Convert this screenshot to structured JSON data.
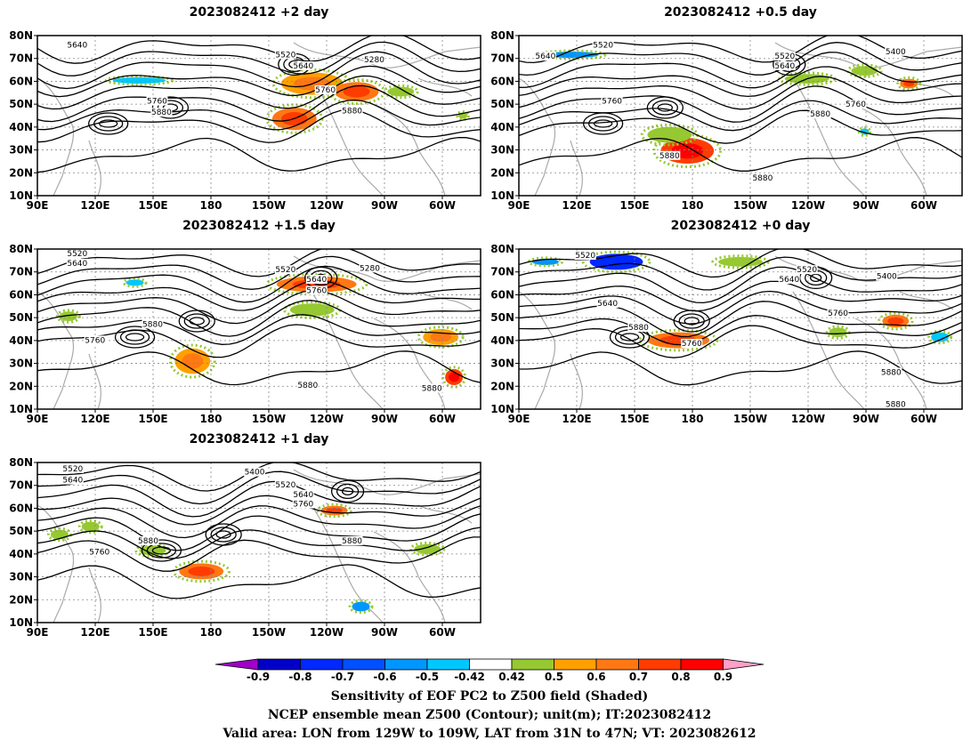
{
  "panels": [
    {
      "id": "p-2day",
      "title": "2023082412 +2 day",
      "labels": [
        "5640",
        "5520",
        "5640",
        "5280",
        "5760",
        "5760",
        "5880",
        "5880"
      ]
    },
    {
      "id": "p-05day",
      "title": "2023082412 +0.5 day",
      "labels": [
        "5520",
        "5640",
        "5520",
        "5400",
        "5640",
        "5760",
        "5760",
        "5880",
        "5880",
        "5880"
      ]
    },
    {
      "id": "p-15day",
      "title": "2023082412 +1.5 day",
      "labels": [
        "5520",
        "5640",
        "5520",
        "5280",
        "5640",
        "5760",
        "5760",
        "5880",
        "5880",
        "5880"
      ]
    },
    {
      "id": "p-0day",
      "title": "2023082412 +0 day",
      "labels": [
        "5520",
        "5520",
        "5640",
        "5400",
        "5640",
        "5760",
        "5880",
        "5760",
        "5880",
        "5880"
      ]
    },
    {
      "id": "p-1day",
      "title": "2023082412 +1 day",
      "labels": [
        "5520",
        "5640",
        "5400",
        "5520",
        "5640",
        "5760",
        "5880",
        "5760",
        "5880"
      ]
    }
  ],
  "lat_ticks": [
    "80N",
    "70N",
    "60N",
    "50N",
    "40N",
    "30N",
    "20N",
    "10N"
  ],
  "lon_ticks": [
    "90E",
    "120E",
    "150E",
    "180",
    "150W",
    "120W",
    "90W",
    "60W"
  ],
  "colorbar": {
    "ticks": [
      "-0.9",
      "-0.8",
      "-0.7",
      "-0.6",
      "-0.5",
      "-0.42",
      "0.42",
      "0.5",
      "0.6",
      "0.7",
      "0.8",
      "0.9"
    ],
    "colors": [
      "#a000c8",
      "#0000c8",
      "#0028ff",
      "#0050ff",
      "#0096ff",
      "#00c8ff",
      "#ffffff",
      "#96c832",
      "#ffa000",
      "#ff7814",
      "#ff3c00",
      "#ff0000",
      "#ffa0c8"
    ]
  },
  "caption": {
    "line1": "Sensitivity of EOF PC2 to Z500 field (Shaded)",
    "line2": "NCEP ensemble mean Z500 (Contour); unit(m); IT:2023082412",
    "line3": "Valid area: LON from 129W to 109W, LAT from 31N to 47N; VT: 2023082612"
  }
}
